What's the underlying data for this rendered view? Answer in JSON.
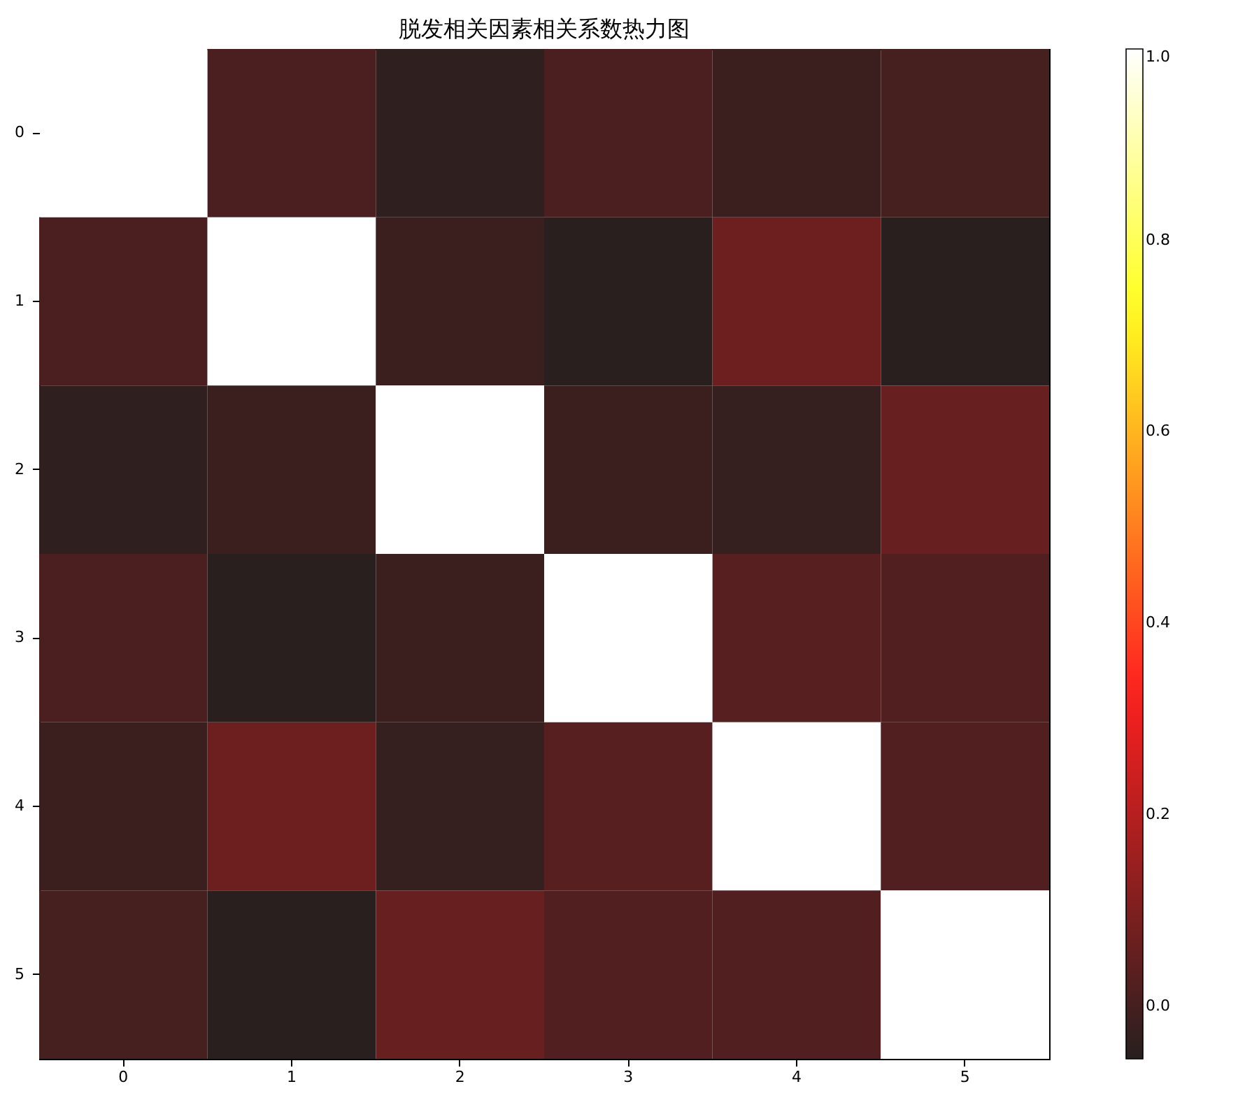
{
  "chart_data": {
    "type": "heatmap",
    "title": "脱发相关因素相关系数热力图",
    "categories": [
      "0",
      "1",
      "2",
      "3",
      "4",
      "5"
    ],
    "y_categories": [
      "0",
      "1",
      "2",
      "3",
      "4",
      "5"
    ],
    "cells": [
      [
        1.0,
        0.01,
        -0.04,
        0.01,
        -0.02,
        0.0
      ],
      [
        0.01,
        1.0,
        -0.02,
        -0.05,
        0.07,
        -0.05
      ],
      [
        -0.04,
        -0.02,
        1.0,
        -0.02,
        -0.03,
        0.06
      ],
      [
        0.01,
        -0.05,
        -0.02,
        1.0,
        0.03,
        0.02
      ],
      [
        -0.02,
        0.07,
        -0.03,
        0.03,
        1.0,
        0.02
      ],
      [
        0.0,
        -0.05,
        0.06,
        0.02,
        0.02,
        1.0
      ]
    ],
    "clim": [
      -0.055,
      1.0
    ],
    "cticks": [
      {
        "value": 0,
        "label": "0.0"
      },
      0.2,
      0.4,
      0.6,
      0.8,
      {
        "value": 1,
        "label": "1.0"
      }
    ]
  }
}
